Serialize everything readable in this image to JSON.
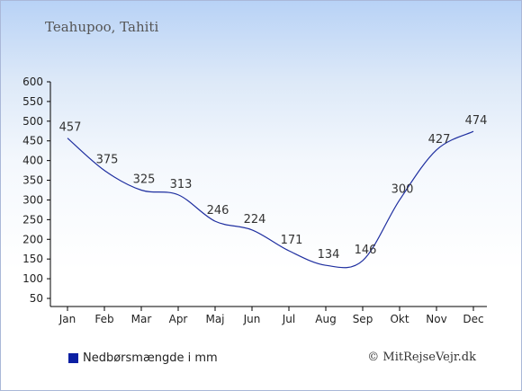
{
  "chart_data": {
    "type": "line",
    "title": "Teahupoo, Tahiti",
    "categories": [
      "Jan",
      "Feb",
      "Mar",
      "Apr",
      "Maj",
      "Jun",
      "Jul",
      "Aug",
      "Sep",
      "Okt",
      "Nov",
      "Dec"
    ],
    "series": [
      {
        "name": "Nedbørsmængde i mm",
        "values": [
          457,
          375,
          325,
          313,
          246,
          224,
          171,
          134,
          146,
          300,
          427,
          474
        ]
      }
    ],
    "ylim": [
      50,
      600
    ],
    "yticks": [
      50,
      100,
      150,
      200,
      250,
      300,
      350,
      400,
      450,
      500,
      550,
      600
    ],
    "grid": false,
    "legend_position": "bottom-left",
    "line_color": "#1f2fa0"
  },
  "footer": {
    "credit": "© MitRejseVejr.dk"
  }
}
